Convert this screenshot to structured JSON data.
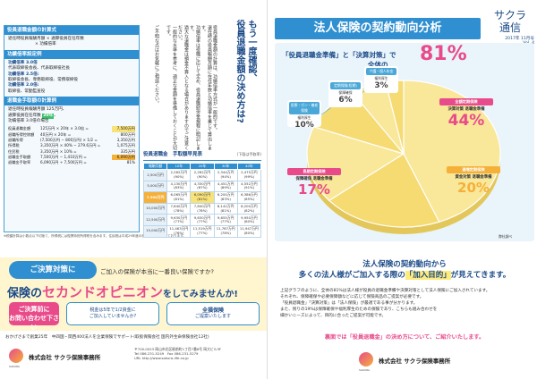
{
  "calc": {
    "s1": {
      "title": "役員退職金額の計算式",
      "line1": "退任時役員報酬月額 × 通算役員在任年数",
      "line2": "× 功績倍率"
    },
    "s2": {
      "title": "功績倍率設定例",
      "items": [
        {
          "rate": "功績倍率 3.0倍",
          "roles": "代表取締役会長、代表取締役社長"
        },
        {
          "rate": "功績倍率 2.5倍:",
          "roles": "取締役会長、専務取締役、常務取締役"
        },
        {
          "rate": "功績倍率 2.0倍:",
          "roles": "取締役、常勤監査役"
        }
      ]
    },
    "s3": {
      "title": "退職金手取額の計算例",
      "l1": "退任時役員報酬月額 125万円、",
      "l2a": "通算役員在任年数",
      "l2b": "20年",
      "l2c": "、",
      "l3": "功績倍率 3.0倍の場合",
      "rows": [
        {
          "k": "役員退職金額",
          "v": "125万円 × 20年 × 3.0倍 =",
          "r": "7,500万円"
        },
        {
          "k": "退職所得控除額",
          "v": "40万円 × 20年 =",
          "r": "800万円"
        },
        {
          "k": "退職所得",
          "v": "(7,500万円 − 800万円) × 1/2 =",
          "r": "3,350万円"
        },
        {
          "k": "所得税",
          "v": "3,350万円 × 40% − 279.6万円 =",
          "r": "1,075万円"
        },
        {
          "k": "住民税",
          "v": "3,350万円 × 10% =",
          "r": "335万円"
        },
        {
          "k": "退職金手取額",
          "v": "7,500万円 − 1,410万円 =",
          "r": "6,090万円"
        },
        {
          "k": "退職金手取率",
          "v": "6,090万円 ÷ 7,500万円 =",
          "r": "81%"
        }
      ]
    }
  },
  "note": "※税額計算は小数点以下切捨て、所得税には復興特別所得税を含みます。住民税は平成29年度の税率により計算しております。",
  "vtitle": {
    "t1": "もう一度確認、",
    "t2": "役員退職金額の決め方は?"
  },
  "vcols": [
    "役員退職金額の計算は、功績倍率方式が一般的です。",
    "退任時の役員報酬月額に在任年数と功績倍率を乗じて算出します。",
    "功績倍率は役職に応じて定め、役員退職慰労金規程に明記します。",
    "過大な退職金は損金不算入となる場合がありますのでご注意ください。",
    "一般的な水準を参考に、適正な金額を準備しておくことが大切です。",
    "ご不明な点はお気軽にご相談ください。"
  ],
  "rate_table": {
    "title": "役員退職金　手取額早見表",
    "sub": "(下段は手取率)",
    "head": [
      "報酬月額",
      "10年",
      "20年",
      "30年",
      "40年"
    ],
    "rows": [
      {
        "h": "2,500万円",
        "c": [
          "2,262万円",
          "2,262万円",
          "2,344万円",
          "2,475万円"
        ],
        "p": [
          "(90%)",
          "(90%)",
          "(94%)",
          "(99%)"
        ]
      },
      {
        "h": "5,000万円",
        "c": [
          "4,130万円",
          "4,330万円",
          "4,451万円",
          "4,552万円"
        ],
        "p": [
          "(83%)",
          "(87%)",
          "(89%)",
          "(91%)"
        ]
      },
      {
        "h": "7,500万円",
        "c": [
          "6,065万円",
          "6,090万円",
          "6,200万円",
          "6,386万円"
        ],
        "p": [
          "(81%)",
          "(81%)",
          "(83%)",
          "(85%)"
        ]
      },
      {
        "h": "10,000万円",
        "c": [
          "7,840万円",
          "7,840万円",
          "8,142万円",
          "8,200万円"
        ],
        "p": [
          "(78%)",
          "(78%)",
          "(81%)",
          "(82%)"
        ]
      },
      {
        "h": "12,500万円",
        "c": [
          "9,630万円",
          "9,630万円",
          "9,655万円",
          "9,950万円"
        ],
        "p": [
          "(77%)",
          "(77%)",
          "(77%)",
          "(80%)"
        ]
      },
      {
        "h": "15,000万円",
        "c": [
          "11,463万円",
          "11,519万円",
          "11,767万円",
          "11,947万円"
        ],
        "p": [
          "(76%)",
          "(77%)",
          "(78%)",
          "(80%)"
        ]
      }
    ]
  },
  "left_banner": {
    "bubble": "ご決算対策に",
    "q": "ご加入の保険が本当に一番良い保険ですか?",
    "main_a": "保険の",
    "main_b": "セカンドオピニオン",
    "main_c": "をしてみませんか!",
    "o1": "ご決算前に",
    "o2": "お問い合わせ下さい",
    "w1a": "税金は5年で1/2資金に",
    "w1b": "ご加入していませんか?",
    "w2a": "全損保険",
    "w2b": "ご提案いたします"
  },
  "left_footer": {
    "line": "おかげさまで創業25年　中四国・関西400法人を企業保険でサポート(取扱保険会社 国内外生命保険会社12社)",
    "logo": "SAKURA",
    "company": "株式会社 サクラ保険事務所",
    "addr1": "〒700-0023 岡山市北区駅前町1丁目7番6号 岡大ビル3F",
    "addr2": "Tel 086-231-5249　Fax 086-231-5279",
    "addr3": "URL http://www.sakura-life.co.jp"
  },
  "right": {
    "title": "法人保険の契約動向分析",
    "masthead": {
      "name1": "サクラ",
      "name2": "通信",
      "date": "2017年 11月号",
      "vol": "Vol. 4",
      "co1": "株式会社",
      "co2": "サクラ保険事務所"
    },
    "chart_head_a": "「役員退職金準備」と「決算対策」で",
    "chart_head_b": "全体の",
    "chart_head_pct": "81%",
    "other": "弊社調べ",
    "sub1a": "法人保険の契約動向から",
    "sub2a": "多くの法人様がご加入する際の",
    "sub2b": "「加入目的」",
    "sub2c": "が見えてきます。",
    "body": [
      "上記グラフのように、全体の81%は法人様が役員の退職金準備や決算対策として法人保険にご加入されています。",
      "それぞれ、保障確保や必要保障額などに応じて保険商品のご提案が必要です。",
      "「役員退職金」「決算対策」は「法人保険」が最適である事が分かります。",
      "また、残りの19%は保障確保や福利厚生のための保険であり、こちらも組み合わせを",
      "細かいニーズによって、目的に合ったご提案が可能です。"
    ],
    "callout": "裏面では「役員退職金」の決め方について、ご紹介いたします。",
    "logo": "SAKURA",
    "company": "株式会社 サクラ保険事務所"
  },
  "chart_data": {
    "type": "pie",
    "title": "法人保険の契約動向分析",
    "categories": [
      "全額定期保険",
      "逓増定期保険",
      "長期定期保険",
      "医療・ガン・養老保険",
      "定期保険(短期)",
      "介護・個人年金"
    ],
    "subtitles": [
      "決算対策 退職金準備",
      "資金対策 退職金準備",
      "保障確保 退職金準備",
      "福利厚生",
      "保障確保",
      "福利厚生"
    ],
    "values": [
      44,
      20,
      17,
      10,
      6,
      3
    ],
    "colors": [
      "#e84a8a",
      "#f5b03a",
      "#e84a8a",
      "#4aa8d8",
      "#4aa8d8",
      "#4aa8d8"
    ]
  }
}
